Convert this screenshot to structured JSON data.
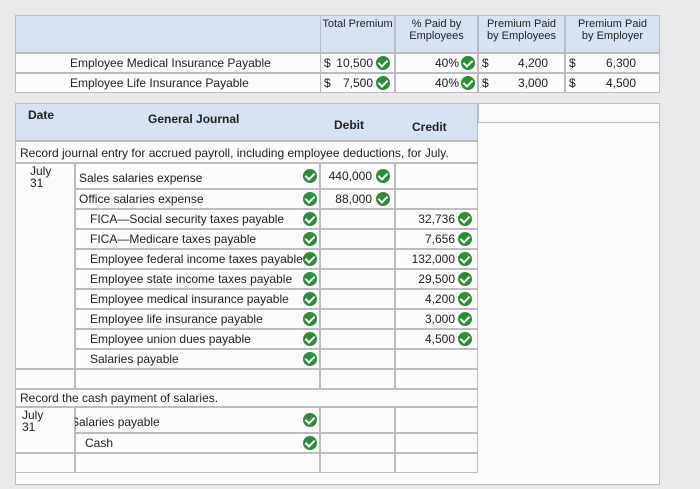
{
  "summary": {
    "headers": [
      "Total Premium",
      "% Paid by Employees",
      "Premium Paid by Employees",
      "Premium Paid by Employer"
    ],
    "rows": [
      {
        "label": "Employee Medical Insurance Payable",
        "total_sign": "$",
        "total": "10,500",
        "percent": "40%",
        "employees_sign": "$",
        "employees": "4,200",
        "employer_sign": "$",
        "employer": "6,300"
      },
      {
        "label": "Employee Life Insurance Payable",
        "total_sign": "$",
        "total": "7,500",
        "percent": "40%",
        "employees_sign": "$",
        "employees": "3,000",
        "employer_sign": "$",
        "employer": "4,500"
      }
    ]
  },
  "journal": {
    "headers": {
      "date": "Date",
      "account": "General Journal",
      "debit": "Debit",
      "credit": "Credit"
    },
    "entries": [
      {
        "instruction": "Record journal entry for accrued payroll, including employee deductions, for July.",
        "date": "July 31",
        "lines": [
          {
            "account": "Sales salaries expense",
            "debit": "440,000"
          },
          {
            "account": "Office salaries expense",
            "debit": "88,000"
          },
          {
            "account": "FICA—Social security taxes payable",
            "credit": "32,736"
          },
          {
            "account": "FICA—Medicare taxes payable",
            "credit": "7,656"
          },
          {
            "account": "Employee federal income taxes payable",
            "credit": "132,000"
          },
          {
            "account": "Employee state income taxes payable",
            "credit": "29,500"
          },
          {
            "account": "Employee medical insurance payable",
            "credit": "4,200"
          },
          {
            "account": "Employee life insurance payable",
            "credit": "3,000"
          },
          {
            "account": "Employee union dues payable",
            "credit": "4,500"
          },
          {
            "account": "Salaries payable"
          }
        ]
      },
      {
        "instruction": "Record the cash payment of salaries.",
        "date": "July 31",
        "lines": [
          {
            "account": "Salaries payable"
          },
          {
            "account": "Cash"
          }
        ]
      }
    ]
  }
}
